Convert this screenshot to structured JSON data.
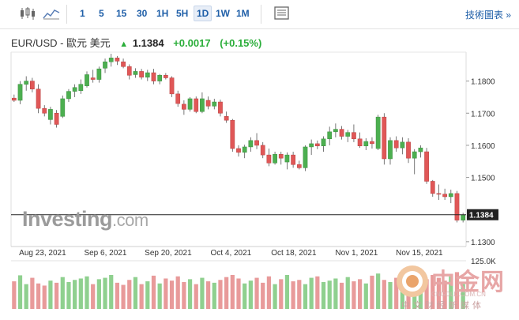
{
  "toolbar": {
    "candles_icon": "candlestick-chart-icon",
    "line_icon": "line-chart-icon",
    "timeframes": [
      "1",
      "5",
      "15",
      "30",
      "1H",
      "5H",
      "1D",
      "1W",
      "1M"
    ],
    "active_timeframe": "1D",
    "table_icon": "data-table-icon",
    "technical_chart_link": "技術圖表 »"
  },
  "quote": {
    "symbol": "EUR/USD - 歐元 美元",
    "direction_icon": "up-arrow-icon",
    "last": "1.1384",
    "change": "+0.0017",
    "change_pct": "(+0.15%)"
  },
  "colors": {
    "up": "#4caf50",
    "down": "#e05757",
    "vol_up": "#8fd08f",
    "vol_down": "#e89a9a",
    "link": "#1f5fa8",
    "up_text": "#2bae3a"
  },
  "chart_data": {
    "type": "candlestick",
    "x_tick_labels": [
      "Aug 23, 2021",
      "Sep 6, 2021",
      "Sep 20, 2021",
      "Oct 4, 2021",
      "Oct 18, 2021",
      "Nov 1, 2021",
      "Nov 15, 2021"
    ],
    "y_tick_labels": [
      "1.1800",
      "1.1700",
      "1.1600",
      "1.1500",
      "1.1300"
    ],
    "ylim": [
      1.1285,
      1.189
    ],
    "current_price_label": "1.1384",
    "volume_axis_label": "125.0K",
    "volume_max": 125000,
    "candles": [
      [
        1.1747,
        1.1758,
        1.1735,
        1.174
      ],
      [
        1.174,
        1.18,
        1.1728,
        1.179
      ],
      [
        1.179,
        1.1815,
        1.177,
        1.18
      ],
      [
        1.18,
        1.181,
        1.1765,
        1.1775
      ],
      [
        1.1775,
        1.179,
        1.17,
        1.1715
      ],
      [
        1.1715,
        1.1725,
        1.169,
        1.17
      ],
      [
        1.168,
        1.172,
        1.1665,
        1.1712
      ],
      [
        1.17,
        1.171,
        1.1655,
        1.1665
      ],
      [
        1.169,
        1.1755,
        1.1685,
        1.1745
      ],
      [
        1.1745,
        1.1775,
        1.1735,
        1.1768
      ],
      [
        1.1768,
        1.179,
        1.175,
        1.178
      ],
      [
        1.177,
        1.1805,
        1.176,
        1.179
      ],
      [
        1.1785,
        1.183,
        1.178,
        1.182
      ],
      [
        1.181,
        1.1835,
        1.1795,
        1.1805
      ],
      [
        1.1805,
        1.1845,
        1.1795,
        1.1838
      ],
      [
        1.184,
        1.187,
        1.1825,
        1.186
      ],
      [
        1.186,
        1.1885,
        1.1845,
        1.1872
      ],
      [
        1.1872,
        1.1878,
        1.185,
        1.1862
      ],
      [
        1.186,
        1.187,
        1.184,
        1.1845
      ],
      [
        1.1845,
        1.1852,
        1.1805,
        1.1818
      ],
      [
        1.182,
        1.184,
        1.181,
        1.183
      ],
      [
        1.183,
        1.1838,
        1.1805,
        1.1812
      ],
      [
        1.1812,
        1.1835,
        1.18,
        1.1826
      ],
      [
        1.1826,
        1.1838,
        1.179,
        1.18
      ],
      [
        1.18,
        1.1822,
        1.179,
        1.1818
      ],
      [
        1.1818,
        1.1825,
        1.1805,
        1.181
      ],
      [
        1.181,
        1.1815,
        1.175,
        1.176
      ],
      [
        1.176,
        1.177,
        1.172,
        1.173
      ],
      [
        1.1728,
        1.174,
        1.1695,
        1.1712
      ],
      [
        1.1712,
        1.175,
        1.1705,
        1.1745
      ],
      [
        1.1745,
        1.1752,
        1.17,
        1.1705
      ],
      [
        1.1705,
        1.1765,
        1.17,
        1.1745
      ],
      [
        1.174,
        1.1752,
        1.1712,
        1.1722
      ],
      [
        1.1722,
        1.1745,
        1.1712,
        1.1735
      ],
      [
        1.1735,
        1.1742,
        1.169,
        1.17
      ],
      [
        1.169,
        1.1705,
        1.167,
        1.1678
      ],
      [
        1.1678,
        1.1682,
        1.158,
        1.159
      ],
      [
        1.159,
        1.16,
        1.1565,
        1.1578
      ],
      [
        1.1578,
        1.1602,
        1.156,
        1.1595
      ],
      [
        1.1595,
        1.1625,
        1.158,
        1.1615
      ],
      [
        1.1615,
        1.1638,
        1.1588,
        1.16
      ],
      [
        1.16,
        1.161,
        1.156,
        1.157
      ],
      [
        1.157,
        1.159,
        1.1535,
        1.1545
      ],
      [
        1.1545,
        1.158,
        1.154,
        1.1572
      ],
      [
        1.1572,
        1.158,
        1.154,
        1.156
      ],
      [
        1.1548,
        1.1578,
        1.1525,
        1.157
      ],
      [
        1.157,
        1.158,
        1.153,
        1.154
      ],
      [
        1.154,
        1.1552,
        1.1525,
        1.153
      ],
      [
        1.153,
        1.16,
        1.152,
        1.1595
      ],
      [
        1.1595,
        1.1618,
        1.157,
        1.1605
      ],
      [
        1.1605,
        1.1615,
        1.1588,
        1.1598
      ],
      [
        1.1598,
        1.1628,
        1.158,
        1.162
      ],
      [
        1.162,
        1.1658,
        1.16,
        1.1642
      ],
      [
        1.1642,
        1.1668,
        1.1625,
        1.165
      ],
      [
        1.165,
        1.166,
        1.1618,
        1.1628
      ],
      [
        1.1628,
        1.1648,
        1.161,
        1.164
      ],
      [
        1.164,
        1.1665,
        1.161,
        1.162
      ],
      [
        1.162,
        1.164,
        1.1592,
        1.1598
      ],
      [
        1.1598,
        1.1622,
        1.1585,
        1.1612
      ],
      [
        1.1612,
        1.1625,
        1.159,
        1.1605
      ],
      [
        1.159,
        1.1695,
        1.1585,
        1.1688
      ],
      [
        1.1688,
        1.17,
        1.154,
        1.1558
      ],
      [
        1.1558,
        1.1625,
        1.154,
        1.1615
      ],
      [
        1.1615,
        1.1628,
        1.158,
        1.1592
      ],
      [
        1.1592,
        1.1625,
        1.1572,
        1.161
      ],
      [
        1.161,
        1.1622,
        1.1545,
        1.156
      ],
      [
        1.156,
        1.1588,
        1.151,
        1.158
      ],
      [
        1.158,
        1.16,
        1.1562,
        1.1592
      ],
      [
        1.158,
        1.1592,
        1.148,
        1.1488
      ],
      [
        1.1488,
        1.1492,
        1.144,
        1.145
      ],
      [
        1.145,
        1.1478,
        1.143,
        1.1448
      ],
      [
        1.1448,
        1.1465,
        1.143,
        1.144
      ],
      [
        1.144,
        1.1462,
        1.142,
        1.145
      ],
      [
        1.145,
        1.1458,
        1.136,
        1.1367
      ],
      [
        1.1367,
        1.139,
        1.136,
        1.1384
      ]
    ],
    "volumes": [
      78,
      95,
      70,
      88,
      72,
      66,
      80,
      74,
      90,
      76,
      82,
      86,
      92,
      70,
      84,
      88,
      96,
      74,
      68,
      82,
      90,
      70,
      78,
      94,
      72,
      86,
      80,
      92,
      76,
      84,
      70,
      88,
      78,
      74,
      82,
      90,
      96,
      86,
      72,
      80,
      88,
      74,
      92,
      70,
      84,
      96,
      78,
      82,
      70,
      88,
      92,
      76,
      80,
      86,
      74,
      90,
      78,
      84,
      72,
      94,
      100,
      82,
      76,
      88,
      80,
      86,
      90,
      74,
      84,
      96,
      88,
      80,
      92,
      104,
      70
    ]
  },
  "brand": {
    "name": "Investing",
    "domain": ".com"
  },
  "watermark": {
    "chinese": "中金网",
    "url": "CNGOLD.COM.CN",
    "subtitle": "中文财经新媒体",
    "logo_icon": "cngold-logo-icon"
  }
}
